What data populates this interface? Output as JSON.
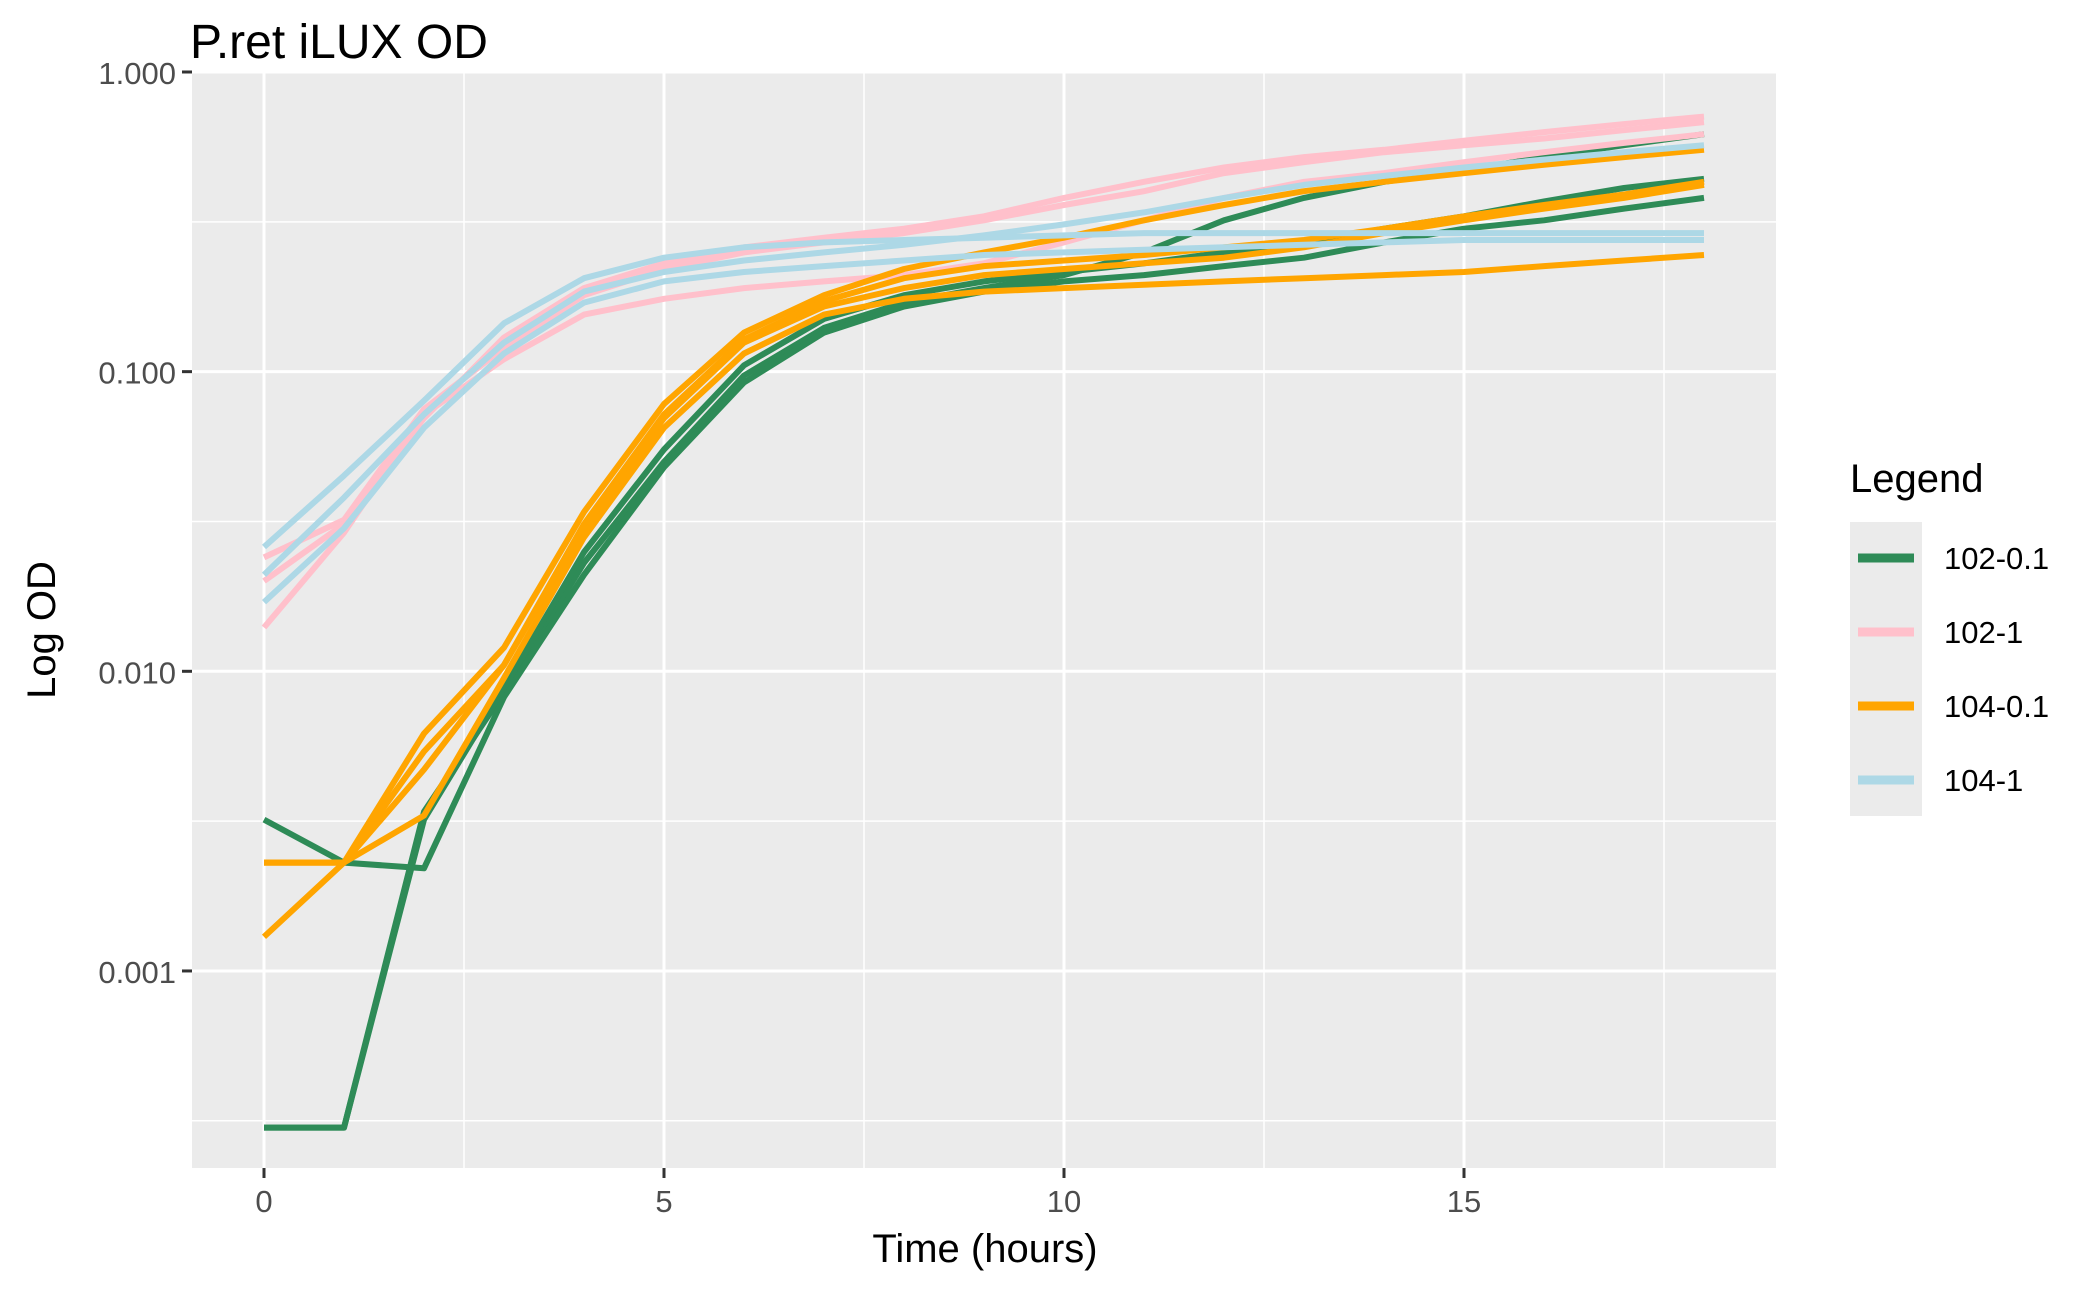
{
  "chart_data": {
    "type": "line",
    "title": "P.ret iLUX OD",
    "xlabel": "Time (hours)",
    "ylabel": "Log OD",
    "y_scale": "log10",
    "xlim": [
      -0.9,
      18.9
    ],
    "ylim": [
      0.00022,
      1.0
    ],
    "x_ticks": [
      0,
      5,
      10,
      15
    ],
    "x_tick_labels": [
      "0",
      "5",
      "10",
      "15"
    ],
    "y_ticks": [
      0.001,
      0.01,
      0.1,
      1.0
    ],
    "y_tick_labels": [
      "0.001",
      "0.010",
      "0.100",
      "1.000"
    ],
    "background": "#EBEBEB",
    "grid": true,
    "legend_title": "Legend",
    "legend_position": "right",
    "x": [
      0,
      1,
      2,
      3,
      4,
      5,
      6,
      7,
      8,
      9,
      10,
      11,
      12,
      13,
      14,
      15,
      16,
      17,
      18
    ],
    "series": [
      {
        "name": "102-0.1",
        "color": "#2E8B57",
        "replicates": [
          [
            0.0003,
            0.0003,
            0.0034,
            0.0085,
            0.023,
            0.05,
            0.097,
            0.14,
            0.17,
            0.19,
            0.21,
            0.25,
            0.32,
            0.38,
            0.43,
            0.47,
            0.52,
            0.57,
            0.62
          ],
          [
            0.0032,
            0.0023,
            0.0022,
            0.0082,
            0.021,
            0.048,
            0.092,
            0.135,
            0.165,
            0.185,
            0.2,
            0.21,
            0.225,
            0.24,
            0.27,
            0.3,
            0.32,
            0.35,
            0.38
          ],
          [
            0.0003,
            0.0003,
            0.0032,
            0.0088,
            0.025,
            0.055,
            0.105,
            0.15,
            0.18,
            0.2,
            0.215,
            0.23,
            0.25,
            0.27,
            0.3,
            0.33,
            0.37,
            0.41,
            0.44
          ]
        ]
      },
      {
        "name": "102-1",
        "color": "#FFC0CB",
        "replicates": [
          [
            0.024,
            0.032,
            0.075,
            0.12,
            0.18,
            0.22,
            0.25,
            0.27,
            0.29,
            0.32,
            0.36,
            0.4,
            0.46,
            0.5,
            0.54,
            0.57,
            0.6,
            0.64,
            0.68
          ],
          [
            0.014,
            0.029,
            0.072,
            0.11,
            0.155,
            0.175,
            0.19,
            0.2,
            0.21,
            0.23,
            0.27,
            0.32,
            0.38,
            0.43,
            0.46,
            0.5,
            0.54,
            0.58,
            0.62
          ],
          [
            0.02,
            0.031,
            0.07,
            0.13,
            0.19,
            0.23,
            0.26,
            0.28,
            0.3,
            0.33,
            0.38,
            0.43,
            0.48,
            0.52,
            0.55,
            0.59,
            0.63,
            0.67,
            0.71
          ]
        ]
      },
      {
        "name": "104-0.1",
        "color": "#FFA500",
        "replicates": [
          [
            0.0023,
            0.0023,
            0.0062,
            0.012,
            0.034,
            0.078,
            0.135,
            0.18,
            0.22,
            0.25,
            0.28,
            0.32,
            0.36,
            0.4,
            0.43,
            0.46,
            0.49,
            0.52,
            0.55
          ],
          [
            0.0013,
            0.0023,
            0.0047,
            0.0105,
            0.03,
            0.07,
            0.125,
            0.165,
            0.19,
            0.21,
            0.22,
            0.23,
            0.24,
            0.26,
            0.29,
            0.32,
            0.35,
            0.38,
            0.42
          ],
          [
            0.0023,
            0.0023,
            0.0033,
            0.0095,
            0.028,
            0.065,
            0.115,
            0.155,
            0.175,
            0.185,
            0.19,
            0.195,
            0.2,
            0.205,
            0.21,
            0.215,
            0.225,
            0.235,
            0.245
          ],
          [
            0.0023,
            0.0023,
            0.0054,
            0.0105,
            0.031,
            0.072,
            0.128,
            0.172,
            0.205,
            0.225,
            0.235,
            0.245,
            0.26,
            0.275,
            0.3,
            0.33,
            0.36,
            0.39,
            0.43
          ]
        ]
      },
      {
        "name": "104-1",
        "color": "#ADD8E6",
        "replicates": [
          [
            0.026,
            0.045,
            0.08,
            0.145,
            0.205,
            0.24,
            0.26,
            0.27,
            0.275,
            0.28,
            0.285,
            0.29,
            0.29,
            0.29,
            0.29,
            0.29,
            0.29,
            0.29,
            0.29
          ],
          [
            0.017,
            0.03,
            0.065,
            0.115,
            0.17,
            0.2,
            0.215,
            0.225,
            0.235,
            0.245,
            0.25,
            0.255,
            0.26,
            0.265,
            0.27,
            0.275,
            0.275,
            0.275,
            0.275
          ],
          [
            0.021,
            0.038,
            0.072,
            0.125,
            0.185,
            0.215,
            0.235,
            0.25,
            0.265,
            0.285,
            0.31,
            0.34,
            0.38,
            0.42,
            0.45,
            0.48,
            0.51,
            0.54,
            0.57
          ]
        ]
      }
    ]
  }
}
